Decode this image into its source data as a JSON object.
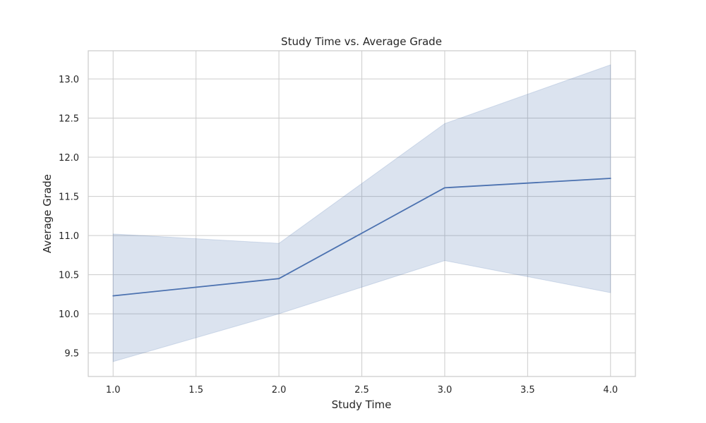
{
  "chart_data": {
    "type": "line",
    "title": "Study Time vs. Average Grade",
    "xlabel": "Study Time",
    "ylabel": "Average Grade",
    "xlim": [
      0.85,
      4.15
    ],
    "ylim": [
      9.2,
      13.36
    ],
    "grid": true,
    "x_ticks": [
      1.0,
      1.5,
      2.0,
      2.5,
      3.0,
      3.5,
      4.0
    ],
    "x_tick_labels": [
      "1.0",
      "1.5",
      "2.0",
      "2.5",
      "3.0",
      "3.5",
      "4.0"
    ],
    "y_ticks": [
      9.5,
      10.0,
      10.5,
      11.0,
      11.5,
      12.0,
      12.5,
      13.0
    ],
    "y_tick_labels": [
      "9.5",
      "10.0",
      "10.5",
      "11.0",
      "11.5",
      "12.0",
      "12.5",
      "13.0"
    ],
    "series": [
      {
        "x": [
          1.0,
          2.0,
          3.0,
          4.0
        ],
        "y": [
          10.23,
          10.45,
          11.61,
          11.73
        ],
        "ci_lower": [
          9.39,
          10.0,
          10.68,
          10.27
        ],
        "ci_upper": [
          11.02,
          10.9,
          12.43,
          13.18
        ],
        "color": "#4c72b0"
      }
    ]
  }
}
